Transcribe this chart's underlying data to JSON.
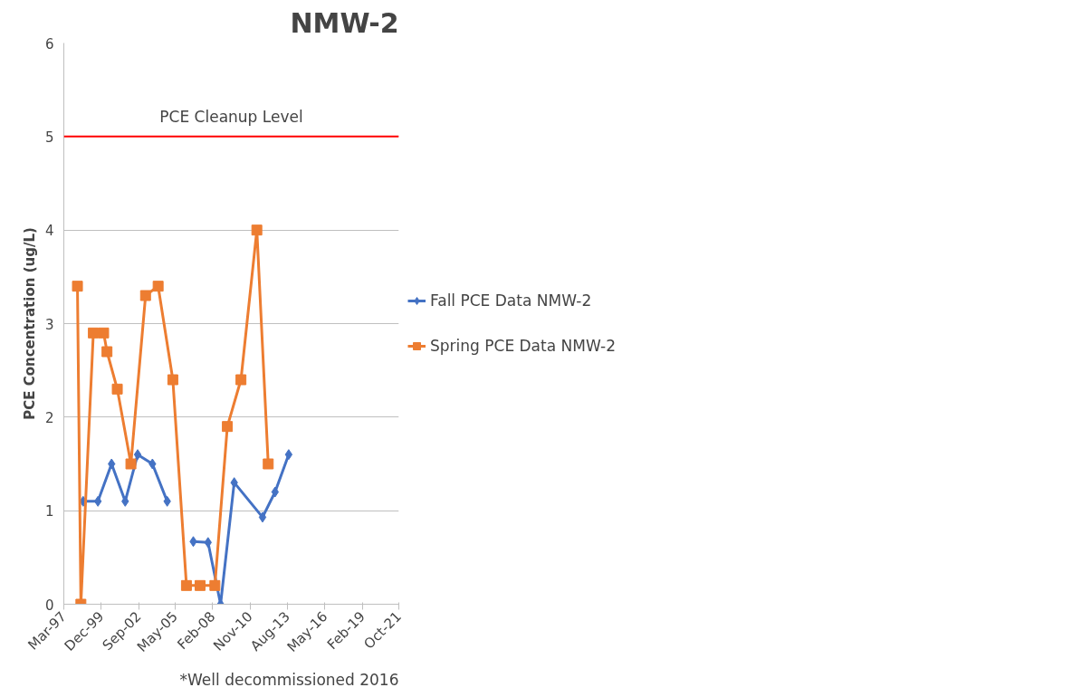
{
  "chart_data": {
    "type": "line",
    "title": "NMW-2",
    "ylabel": "PCE Concentration (ug/L)",
    "xlim": [
      "1997-03-01",
      "2021-10-01"
    ],
    "xticks": [
      {
        "value": "1997-03-01",
        "label": "Mar-97"
      },
      {
        "value": "1999-12-01",
        "label": "Dec-99"
      },
      {
        "value": "2002-09-01",
        "label": "Sep-02"
      },
      {
        "value": "2005-05-01",
        "label": "May-05"
      },
      {
        "value": "2008-02-01",
        "label": "Feb-08"
      },
      {
        "value": "2010-11-01",
        "label": "Nov-10"
      },
      {
        "value": "2013-08-01",
        "label": "Aug-13"
      },
      {
        "value": "2016-05-01",
        "label": "May-16"
      },
      {
        "value": "2019-02-01",
        "label": "Feb-19"
      },
      {
        "value": "2021-10-01",
        "label": "Oct-21"
      }
    ],
    "ylim": [
      0,
      6
    ],
    "yticks": [
      0,
      1,
      2,
      3,
      4,
      5,
      6
    ],
    "grid": "y",
    "legend": "right",
    "series": [
      {
        "name": "Fall PCE Data NMW-2",
        "color": "#4472c4",
        "marker": "diamond",
        "x": [
          "1998-08",
          "1999-09",
          "2000-09",
          "2001-09",
          "2002-08",
          "2003-09",
          "2004-10",
          "2005-09",
          "2006-09",
          "2007-10",
          "2008-09",
          "2009-09",
          "2011-10",
          "2012-09",
          "2013-09"
        ],
        "values": [
          1.1,
          1.1,
          1.5,
          1.1,
          1.6,
          1.5,
          1.1,
          null,
          0.67,
          0.66,
          0.0,
          1.3,
          0.93,
          1.2,
          1.6
        ]
      },
      {
        "name": "Spring PCE Data NMW-2",
        "color": "#ed7d31",
        "marker": "square",
        "x": [
          "1998-03",
          "1998-06",
          "1999-05",
          "2000-02",
          "2000-05",
          "2001-02",
          "2002-02",
          "2003-03",
          "2004-02",
          "2005-03",
          "2006-03",
          "2007-03",
          "2008-04",
          "2009-03",
          "2010-03",
          "2011-05",
          "2012-03"
        ],
        "values": [
          3.4,
          0.0,
          2.9,
          2.9,
          2.7,
          2.3,
          1.5,
          3.3,
          3.4,
          2.4,
          0.2,
          0.2,
          0.2,
          1.9,
          2.4,
          4.0,
          1.5
        ]
      }
    ],
    "ref_lines": [
      {
        "axis": "y",
        "value": 5,
        "label": "PCE Cleanup Level",
        "color": "#ff0000"
      }
    ],
    "annotations": [
      "*Well decommissioned 2016"
    ]
  }
}
